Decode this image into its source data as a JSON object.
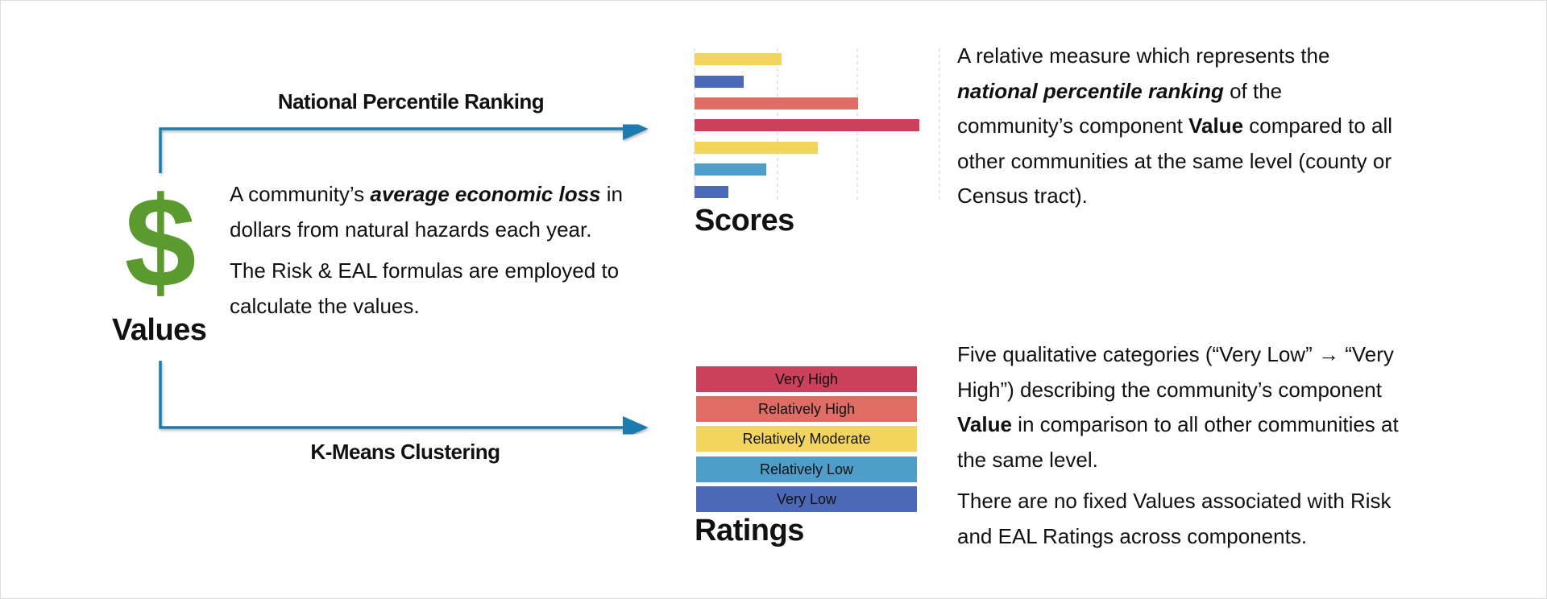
{
  "header": {
    "top_label": "National Percentile Ranking",
    "bottom_label": "K-Means Clustering"
  },
  "values": {
    "icon": "$",
    "title": "Values",
    "paragraphs": [
      [
        "A community’s ",
        "average economic loss",
        " in dollars from natural hazards each year."
      ],
      [
        "The Risk & EAL formulas are employed to calculate the values."
      ]
    ]
  },
  "scores": {
    "title": "Scores",
    "paragraphs": [
      [
        "A relative measure which represents the ",
        "national percentile ranking",
        " of the community’s component ",
        "Value",
        " compared to all other communities at the same level (county or Census tract)."
      ]
    ]
  },
  "ratings": {
    "title": "Ratings",
    "categories": [
      "Very High",
      "Relatively High",
      "Relatively Moderate",
      "Relatively Low",
      "Very Low"
    ],
    "paragraphs": [
      [
        "Five qualitative categories (“Very Low” → “Very High”) describing the community’s component ",
        "Value",
        " in comparison to all other communities at the same level."
      ],
      [
        "There are no fixed Values associated with Risk and EAL Ratings across components."
      ]
    ]
  }
}
